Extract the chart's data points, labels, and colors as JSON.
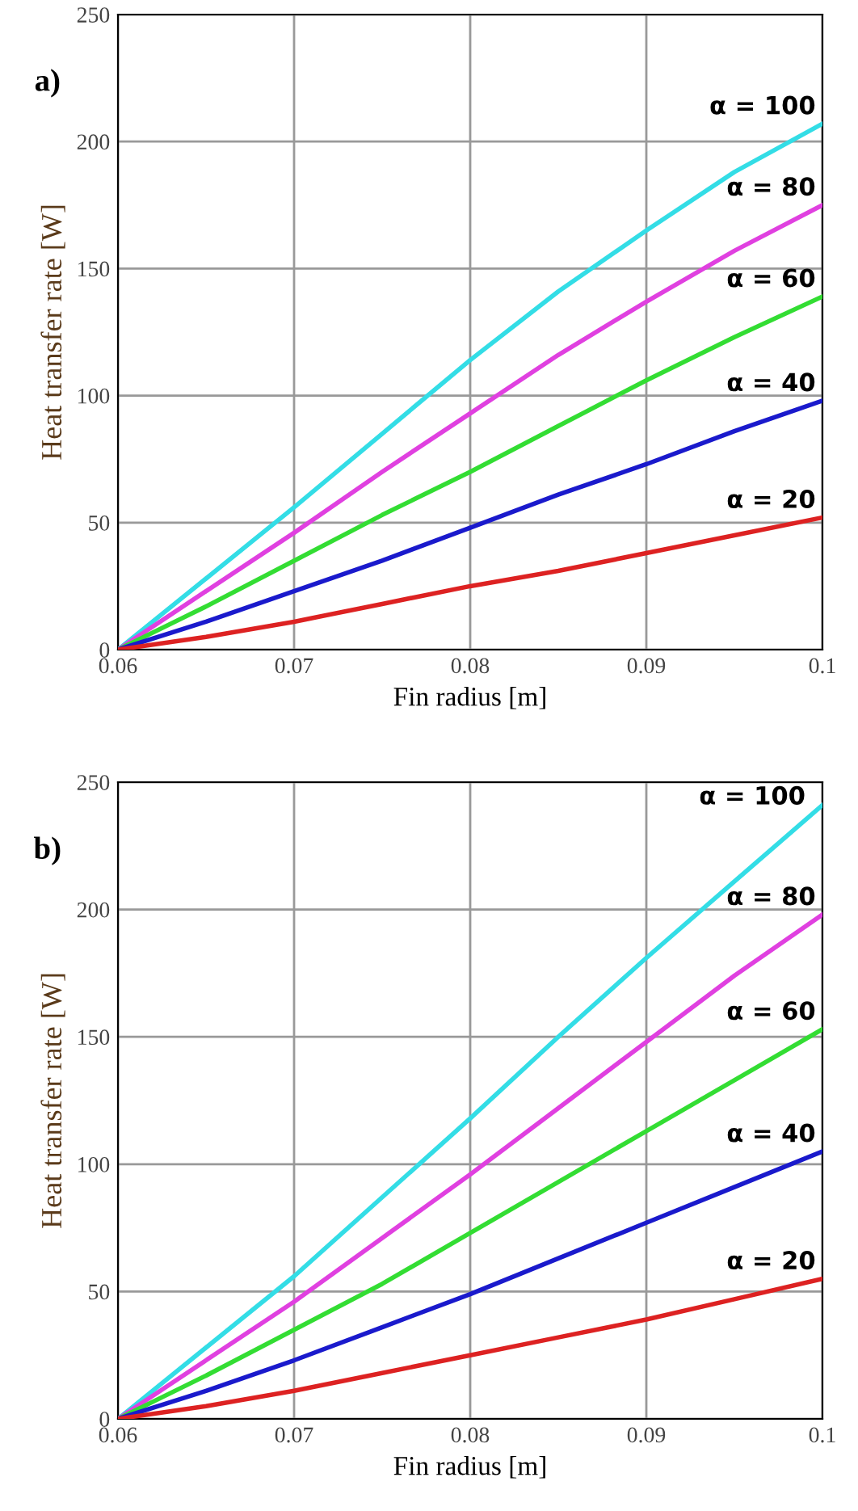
{
  "chart_data": [
    {
      "type": "line",
      "title": "a)",
      "xlabel": "Fin radius [m]",
      "ylabel": "Heat transfer rate [W]",
      "x": [
        0.06,
        0.065,
        0.07,
        0.075,
        0.08,
        0.085,
        0.09,
        0.095,
        0.1
      ],
      "xlim": [
        0.06,
        0.1
      ],
      "xticks": [
        0.06,
        0.07,
        0.08,
        0.09,
        0.1
      ],
      "ylim": [
        0,
        250
      ],
      "yticks": [
        0,
        50,
        100,
        150,
        200,
        250
      ],
      "grid": true,
      "series": [
        {
          "name": "α = 100",
          "color": "#33dde6",
          "values": [
            0,
            28,
            56,
            85,
            114,
            141,
            165,
            188,
            207
          ]
        },
        {
          "name": "α = 80",
          "color": "#e040e0",
          "values": [
            0,
            23,
            46,
            70,
            93,
            116,
            137,
            157,
            175
          ]
        },
        {
          "name": "α = 60",
          "color": "#33dd33",
          "values": [
            0,
            17,
            35,
            53,
            70,
            88,
            106,
            123,
            139
          ]
        },
        {
          "name": "α = 40",
          "color": "#1a1acc",
          "values": [
            0,
            11,
            23,
            35,
            48,
            61,
            73,
            86,
            98
          ]
        },
        {
          "name": "α = 20",
          "color": "#dd2222",
          "values": [
            0,
            5,
            11,
            18,
            25,
            31,
            38,
            45,
            52
          ]
        }
      ]
    },
    {
      "type": "line",
      "title": "b)",
      "xlabel": "Fin radius [m]",
      "ylabel": "Heat transfer rate [W]",
      "x": [
        0.06,
        0.065,
        0.07,
        0.075,
        0.08,
        0.085,
        0.09,
        0.095,
        0.1
      ],
      "xlim": [
        0.06,
        0.1
      ],
      "xticks": [
        0.06,
        0.07,
        0.08,
        0.09,
        0.1
      ],
      "ylim": [
        0,
        250
      ],
      "yticks": [
        0,
        50,
        100,
        150,
        200,
        250
      ],
      "grid": true,
      "series": [
        {
          "name": "α = 100",
          "color": "#33dde6",
          "values": [
            0,
            28,
            56,
            87,
            118,
            150,
            181,
            211,
            241
          ]
        },
        {
          "name": "α = 80",
          "color": "#e040e0",
          "values": [
            0,
            23,
            46,
            71,
            96,
            122,
            148,
            174,
            198
          ]
        },
        {
          "name": "α = 60",
          "color": "#33dd33",
          "values": [
            0,
            17,
            35,
            53,
            73,
            93,
            113,
            133,
            153
          ]
        },
        {
          "name": "α = 40",
          "color": "#1a1acc",
          "values": [
            0,
            11,
            23,
            36,
            49,
            63,
            77,
            91,
            105
          ]
        },
        {
          "name": "α = 20",
          "color": "#dd2222",
          "values": [
            0,
            5,
            11,
            18,
            25,
            32,
            39,
            47,
            55
          ]
        }
      ]
    }
  ]
}
